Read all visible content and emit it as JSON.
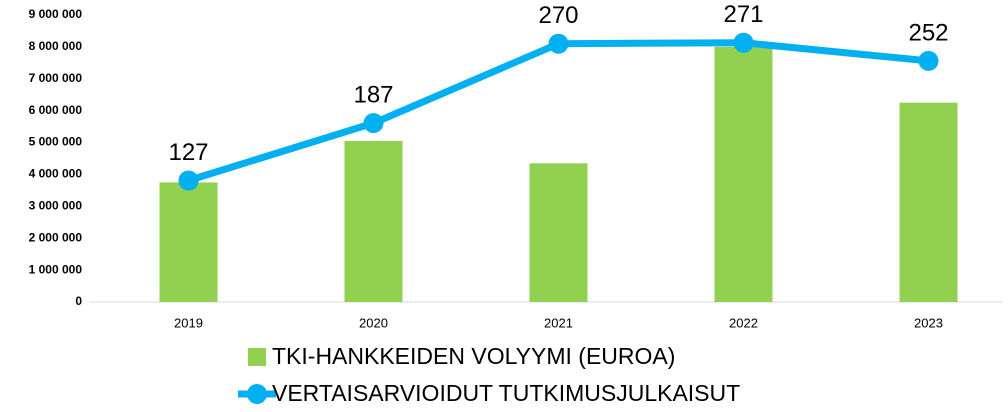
{
  "chart_data": {
    "type": "bar_line",
    "categories": [
      "2019",
      "2020",
      "2021",
      "2022",
      "2023"
    ],
    "series": [
      {
        "name": "TKI-HANKKEIDEN VOLYYMI (EUROA)",
        "type": "bar",
        "color": "#92d050",
        "values": [
          3750000,
          5050000,
          4350000,
          8000000,
          6250000
        ]
      },
      {
        "name": "VERTAISARVIOIDUT TUTKIMUSJULKAISUT",
        "type": "line",
        "axis": "y2",
        "color": "#00b0f0",
        "values": [
          127,
          187,
          270,
          271,
          252
        ]
      }
    ],
    "ylim": [
      0,
      9000000
    ],
    "yticks": [
      0,
      {
        "value": 1000000,
        "label": "1 000 000"
      },
      {
        "value": 2000000,
        "label": "2 000 000"
      },
      {
        "value": 3000000,
        "label": "3 000 000"
      },
      {
        "value": 4000000,
        "label": "4 000 000"
      },
      {
        "value": 5000000,
        "label": "5 000 000"
      },
      {
        "value": 6000000,
        "label": "6 000 000"
      },
      {
        "value": 7000000,
        "label": "7 000 000"
      },
      {
        "value": 8000000,
        "label": "8 000 000"
      },
      {
        "value": 9000000,
        "label": "9 000 000"
      }
    ],
    "y2lim": [
      0,
      300
    ],
    "legend": "bottom"
  }
}
